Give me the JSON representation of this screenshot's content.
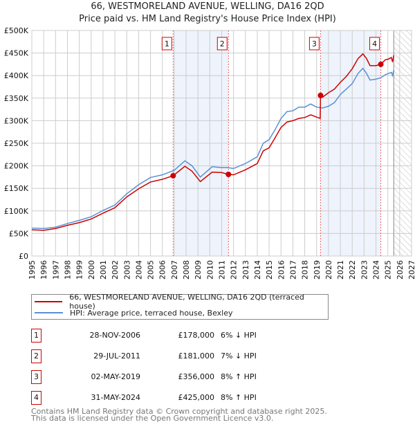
{
  "title": "66, WESTMORELAND AVENUE, WELLING, DA16 2QD",
  "subtitle": "Price paid vs. HM Land Registry's House Price Index (HPI)",
  "chart_data": {
    "type": "line",
    "title": "66, WESTMORELAND AVENUE, WELLING, DA16 2QD",
    "subtitle": "Price paid vs. HM Land Registry's House Price Index (HPI)",
    "xlim": [
      1995,
      2027
    ],
    "ylim": [
      0,
      500000
    ],
    "x_ticks": [
      "1995",
      "1996",
      "1997",
      "1998",
      "1999",
      "2000",
      "2001",
      "2002",
      "2003",
      "2004",
      "2005",
      "2006",
      "2007",
      "2008",
      "2009",
      "2010",
      "2011",
      "2012",
      "2013",
      "2014",
      "2015",
      "2016",
      "2017",
      "2018",
      "2019",
      "2020",
      "2021",
      "2022",
      "2023",
      "2024",
      "2025",
      "2026",
      "2027"
    ],
    "y_ticks": [
      "£0",
      "£50K",
      "£100K",
      "£150K",
      "£200K",
      "£250K",
      "£300K",
      "£350K",
      "£400K",
      "£450K",
      "£500K"
    ],
    "grid": true,
    "series": [
      {
        "name": "66, WESTMORELAND AVENUE, WELLING, DA16 2QD (terraced house)",
        "color": "#cc0000",
        "x": [
          1995,
          1996,
          1997,
          1998,
          1999,
          2000,
          2001,
          2002,
          2003,
          2004,
          2005,
          2006,
          2006.91,
          2007.9,
          2008.5,
          2009.2,
          2010.2,
          2011,
          2011.57,
          2012,
          2013,
          2014,
          2014.5,
          2015,
          2015.5,
          2016,
          2016.5,
          2017,
          2017.5,
          2018,
          2018.5,
          2019.3,
          2019.33,
          2019.5,
          2020,
          2020.5,
          2021,
          2021.5,
          2022,
          2022.5,
          2022.9,
          2023.2,
          2023.5,
          2024,
          2024.41,
          2024.8,
          2025,
          2025.3,
          2025.4,
          2025.5
        ],
        "y": [
          58000,
          57000,
          61000,
          68000,
          74000,
          82000,
          95000,
          107000,
          131000,
          149000,
          164000,
          170000,
          178000,
          199000,
          188000,
          165000,
          186000,
          185000,
          181000,
          180000,
          191000,
          205000,
          233000,
          240000,
          262000,
          285000,
          297000,
          300000,
          305000,
          307000,
          313000,
          305000,
          356000,
          352000,
          362000,
          370000,
          385000,
          398000,
          415000,
          438000,
          448000,
          438000,
          422000,
          422000,
          425000,
          435000,
          436000,
          440000,
          430000,
          445000
        ]
      },
      {
        "name": "HPI: Average price, terraced house, Bexley",
        "color": "#5b8fd4",
        "x": [
          1995,
          1996,
          1997,
          1998,
          1999,
          2000,
          2001,
          2002,
          2003,
          2004,
          2005,
          2006,
          2007,
          2007.9,
          2008.5,
          2009.2,
          2010.2,
          2011,
          2011.5,
          2012,
          2013,
          2014,
          2014.5,
          2015,
          2015.5,
          2016,
          2016.5,
          2017,
          2017.5,
          2018,
          2018.5,
          2019,
          2019.5,
          2020,
          2020.5,
          2021,
          2021.5,
          2022,
          2022.5,
          2022.9,
          2023.2,
          2023.5,
          2024,
          2024.4,
          2024.8,
          2025,
          2025.3,
          2025.4,
          2025.5
        ],
        "y": [
          62000,
          61000,
          64000,
          72000,
          79000,
          87000,
          101000,
          113000,
          138000,
          158000,
          174000,
          180000,
          190000,
          211000,
          200000,
          175000,
          198000,
          196000,
          196000,
          194000,
          205000,
          220000,
          250000,
          258000,
          280000,
          305000,
          320000,
          322000,
          330000,
          330000,
          337000,
          330000,
          328000,
          332000,
          340000,
          358000,
          370000,
          382000,
          405000,
          416000,
          405000,
          390000,
          392000,
          395000,
          402000,
          404000,
          407000,
          400000,
          412000
        ]
      }
    ],
    "sales": [
      {
        "label": "1",
        "x": 2006.91,
        "price": 178000,
        "date": "28-NOV-2006",
        "price_text": "£178,000",
        "hpi": "6% ↓ HPI"
      },
      {
        "label": "2",
        "x": 2011.57,
        "price": 181000,
        "date": "29-JUL-2011",
        "price_text": "£181,000",
        "hpi": "7% ↓ HPI"
      },
      {
        "label": "3",
        "x": 2019.33,
        "price": 356000,
        "date": "02-MAY-2019",
        "price_text": "£356,000",
        "hpi": "8% ↑ HPI"
      },
      {
        "label": "4",
        "x": 2024.41,
        "price": 425000,
        "date": "31-MAY-2024",
        "price_text": "£425,000",
        "hpi": "8% ↑ HPI"
      }
    ],
    "shaded_ranges": [
      [
        2006.91,
        2011.57
      ],
      [
        2019.33,
        2024.41
      ]
    ],
    "forecast_start": 2025.5
  },
  "legend": {
    "red": "66, WESTMORELAND AVENUE, WELLING, DA16 2QD (terraced house)",
    "blue": "HPI: Average price, terraced house, Bexley"
  },
  "footer": {
    "line1": "Contains HM Land Registry data © Crown copyright and database right 2025.",
    "line2": "This data is licensed under the Open Government Licence v3.0."
  }
}
